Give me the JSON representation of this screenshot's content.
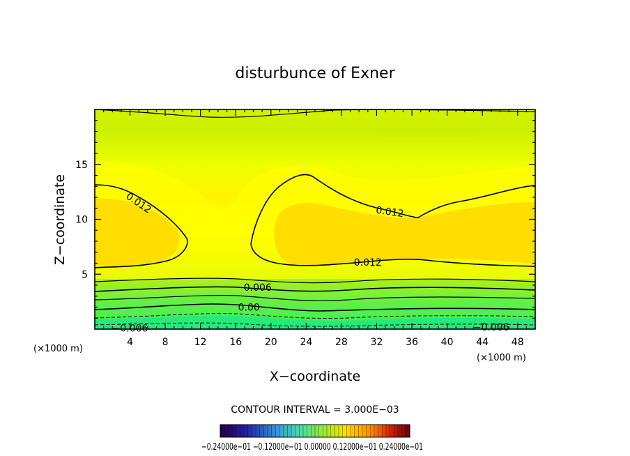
{
  "chart_data": {
    "type": "contour",
    "title": "disturbunce of Exner",
    "xlabel": "X−coordinate",
    "ylabel": "Z−coordinate",
    "x_unit": "(×1000 m)",
    "y_unit": "(×1000 m)",
    "xlim": [
      0,
      50
    ],
    "ylim": [
      0,
      20
    ],
    "x_ticks": [
      "4",
      "8",
      "12",
      "16",
      "20",
      "24",
      "28",
      "32",
      "36",
      "40",
      "44",
      "48"
    ],
    "x_tick_values": [
      4,
      8,
      12,
      16,
      20,
      24,
      28,
      32,
      36,
      40,
      44,
      48
    ],
    "y_ticks": [
      "5",
      "10",
      "15"
    ],
    "y_tick_values": [
      5,
      10,
      15
    ],
    "contour_interval_text": "CONTOUR INTERVAL = 3.000E−03",
    "contour_interval": 0.003,
    "contour_labels": [
      {
        "text": "0.012",
        "x": 5,
        "y": 11.5,
        "rotate": 34
      },
      {
        "text": "0.012",
        "x": 33.5,
        "y": 10.7,
        "rotate": 8
      },
      {
        "text": "0.012",
        "x": 31,
        "y": 6.1,
        "rotate": 0
      },
      {
        "text": "0.006",
        "x": 18.5,
        "y": 3.8,
        "rotate": 0
      },
      {
        "text": "0.00",
        "x": 17.5,
        "y": 2.0,
        "rotate": 0
      },
      {
        "text": "−0.006",
        "x": 4,
        "y": 0.1,
        "rotate": 0
      },
      {
        "text": "−0.006",
        "x": 45,
        "y": 0.2,
        "rotate": 0
      }
    ],
    "colorbar_labels_text": "−0.24000e−01  −0.12000e−01  0.00000  0.12000e−01  0.24000e−01",
    "colorbar_range": [
      -0.024,
      0.024
    ],
    "colormap": [
      "#220044",
      "#2222aa",
      "#3399dd",
      "#44ddaa",
      "#99ee33",
      "#ffdd00",
      "#ff8800",
      "#cc2200",
      "#660011"
    ],
    "fill_colors": {
      "min": "#10e890",
      "green": "#60f040",
      "yellow_green": "#ccf000",
      "yellow": "#ffff00",
      "orange_yellow": "#ffd800"
    }
  }
}
